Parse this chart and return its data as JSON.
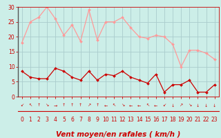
{
  "title": "",
  "xlabel": "Vent moyen/en rafales ( km/h )",
  "ylabel": "",
  "bg_color": "#cceee8",
  "grid_color": "#aacccc",
  "line1_color": "#ff9999",
  "line2_color": "#cc0000",
  "x": [
    0,
    1,
    2,
    3,
    4,
    5,
    6,
    7,
    8,
    9,
    10,
    11,
    12,
    13,
    14,
    15,
    16,
    17,
    18,
    19,
    20,
    21,
    22,
    23
  ],
  "rafales": [
    18,
    25,
    26.5,
    30,
    26,
    20.5,
    24,
    18.5,
    29,
    19,
    25,
    25,
    26.5,
    23,
    20,
    19.5,
    20.5,
    20,
    17.5,
    10,
    15.5,
    15.5,
    14.5,
    12.5
  ],
  "moyen": [
    8.5,
    6.5,
    6,
    6,
    9.5,
    8.5,
    6.5,
    5.5,
    8.5,
    5.5,
    7.5,
    7,
    8.5,
    6.5,
    5.5,
    4.5,
    7.5,
    1.5,
    4,
    4,
    5.5,
    1.5,
    1.5,
    4
  ],
  "ylim": [
    0,
    30
  ],
  "xlim": [
    -0.5,
    23.5
  ],
  "yticks": [
    0,
    5,
    10,
    15,
    20,
    25,
    30
  ],
  "xticks": [
    0,
    1,
    2,
    3,
    4,
    5,
    6,
    7,
    8,
    9,
    10,
    11,
    12,
    13,
    14,
    15,
    16,
    17,
    18,
    19,
    20,
    21,
    22,
    23
  ],
  "tick_color": "#cc0000",
  "tick_fontsize": 5.5,
  "xlabel_fontsize": 7.5,
  "marker_size": 2.0,
  "wind_dirs": [
    "↙",
    "↖",
    "↑",
    "↘",
    "→",
    "↑",
    "↑",
    "↑",
    "↗",
    "↑",
    "←",
    "↖",
    "↘",
    "←",
    "←",
    "↖",
    "←",
    "↙",
    "↓",
    "↗",
    "↘",
    "↓",
    "↓",
    "↓"
  ]
}
